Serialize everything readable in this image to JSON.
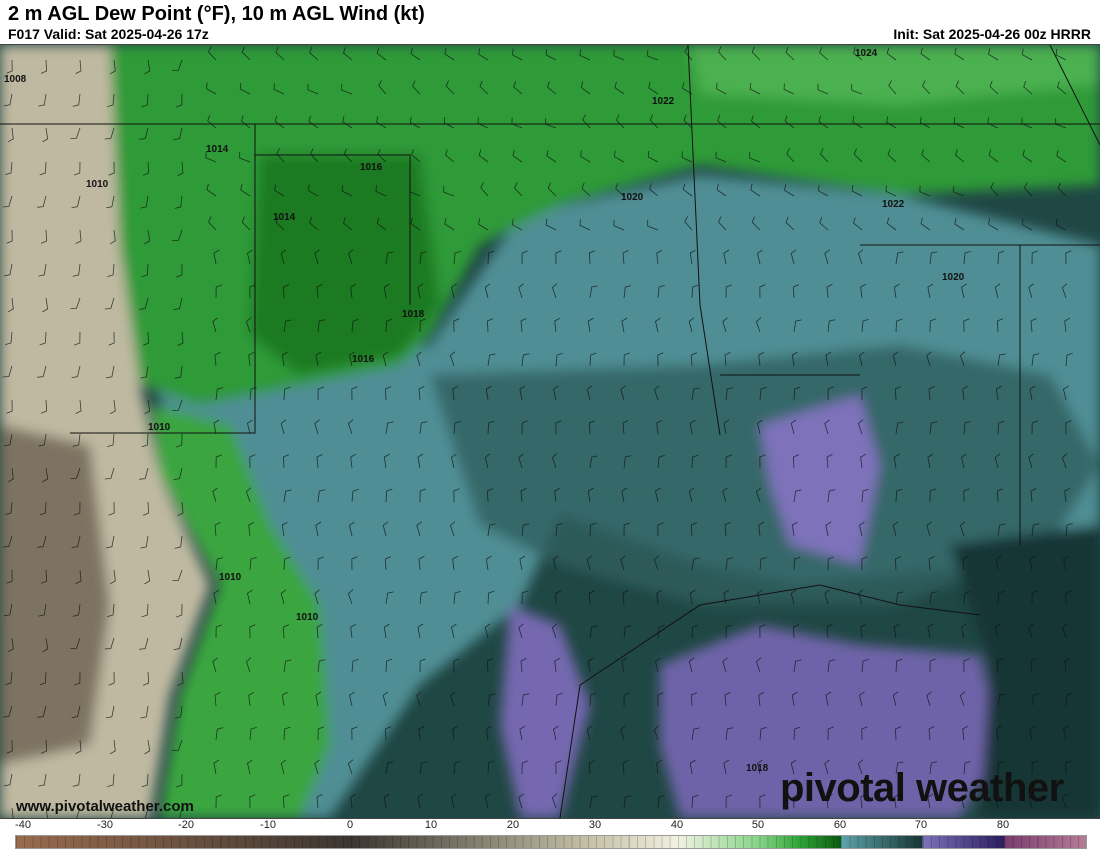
{
  "header": {
    "title": "2 m AGL Dew Point (°F), 10 m AGL Wind (kt)",
    "valid": "F017 Valid: Sat 2025-04-26 17z",
    "init": "Init: Sat 2025-04-26 00z HRRR"
  },
  "isobar_labels": [
    "1008",
    "1010",
    "1014",
    "1016",
    "1014",
    "1018",
    "1016",
    "1020",
    "1022",
    "1024",
    "1022",
    "1020",
    "1010",
    "1010",
    "1010",
    "1018"
  ],
  "watermark": {
    "site": "www.pivotalweather.com",
    "brand": "pivotal weather"
  },
  "colorbar": {
    "unit": "°F",
    "ticks": [
      "-40",
      "-30",
      "-20",
      "-10",
      "0",
      "10",
      "20",
      "30",
      "40",
      "50",
      "60",
      "70",
      "80"
    ],
    "colors": {
      "-40": "#9a6c4e",
      "0": "#3b3631",
      "30": "#c9c4aa",
      "40": "#f1f1e2",
      "50": "#86d488",
      "55": "#2fa335",
      "60": "#0b5a12",
      "60+": "#5ea3ab",
      "70": "#173634",
      "70+": "#7c72ba",
      "80": "#2c1d5e",
      "80+": "#7a3b6f",
      "90": "#b57c94"
    }
  }
}
